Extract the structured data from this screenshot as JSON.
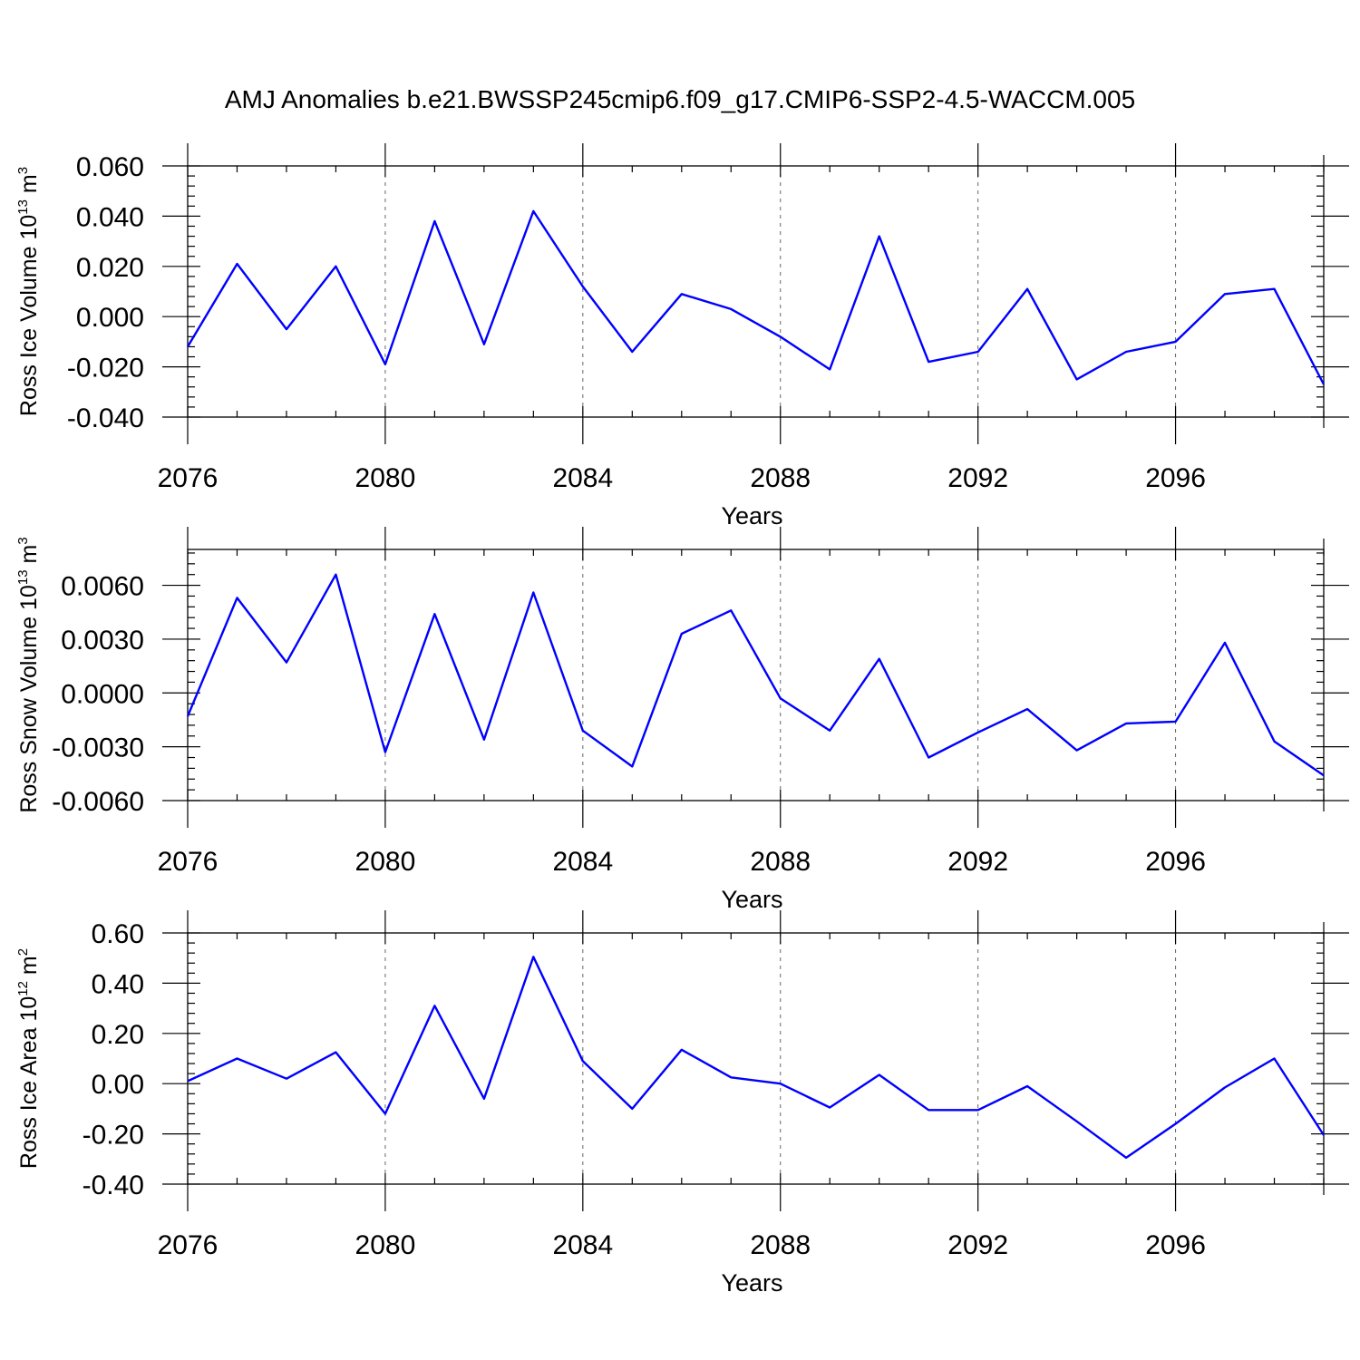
{
  "title": "AMJ Anomalies b.e21.BWSSP245cmip6.f09_g17.CMIP6-SSP2-4.5-WACCM.005",
  "colors": {
    "line": "#0000ff",
    "axis": "#000000",
    "grid": "#666666"
  },
  "chart_data": [
    {
      "type": "line",
      "xlabel": "Years",
      "ylabel_main": "Ross Ice Volume 10",
      "ylabel_exp": "13",
      "ylabel_unit": " m",
      "ylabel_unit_exp": "3",
      "x": [
        2076,
        2077,
        2078,
        2079,
        2080,
        2081,
        2082,
        2083,
        2084,
        2085,
        2086,
        2087,
        2088,
        2089,
        2090,
        2091,
        2092,
        2093,
        2094,
        2095,
        2096,
        2097,
        2098,
        2099
      ],
      "values": [
        -0.012,
        0.021,
        -0.005,
        0.02,
        -0.019,
        0.038,
        -0.011,
        0.042,
        0.012,
        -0.014,
        0.009,
        0.003,
        -0.008,
        -0.021,
        0.032,
        -0.018,
        -0.014,
        0.011,
        -0.025,
        -0.014,
        -0.01,
        0.009,
        0.011,
        -0.027
      ],
      "xlim": [
        2076,
        2099
      ],
      "ylim": [
        -0.04,
        0.06
      ],
      "xticks": [
        2076,
        2080,
        2084,
        2088,
        2092,
        2096
      ],
      "xtick_labels": [
        "2076",
        "2080",
        "2084",
        "2088",
        "2092",
        "2096"
      ],
      "yticks": [
        -0.04,
        -0.02,
        0.0,
        0.02,
        0.04,
        0.06
      ],
      "ytick_labels": [
        "-0.040",
        "-0.020",
        "0.000",
        "0.020",
        "0.040",
        "0.060"
      ],
      "grid": "dashed vertical at major x ticks"
    },
    {
      "type": "line",
      "xlabel": "Years",
      "ylabel_main": "Ross Snow Volume 10",
      "ylabel_exp": "13",
      "ylabel_unit": " m",
      "ylabel_unit_exp": "3",
      "x": [
        2076,
        2077,
        2078,
        2079,
        2080,
        2081,
        2082,
        2083,
        2084,
        2085,
        2086,
        2087,
        2088,
        2089,
        2090,
        2091,
        2092,
        2093,
        2094,
        2095,
        2096,
        2097,
        2098,
        2099
      ],
      "values": [
        -0.0013,
        0.0053,
        0.0017,
        0.0066,
        -0.0033,
        0.0044,
        -0.0026,
        0.0056,
        -0.0021,
        -0.0041,
        0.0033,
        0.0046,
        -0.0003,
        -0.0021,
        0.0019,
        -0.0036,
        -0.0022,
        -0.0009,
        -0.0032,
        -0.0017,
        -0.0016,
        0.0028,
        -0.0027,
        -0.0046
      ],
      "xlim": [
        2076,
        2099
      ],
      "ylim": [
        -0.006,
        0.008
      ],
      "xticks": [
        2076,
        2080,
        2084,
        2088,
        2092,
        2096
      ],
      "xtick_labels": [
        "2076",
        "2080",
        "2084",
        "2088",
        "2092",
        "2096"
      ],
      "yticks": [
        -0.006,
        -0.003,
        0.0,
        0.003,
        0.006
      ],
      "ytick_labels": [
        "-0.0060",
        "-0.0030",
        "0.0000",
        "0.0030",
        "0.0060"
      ],
      "grid": "dashed vertical at major x ticks"
    },
    {
      "type": "line",
      "xlabel": "Years",
      "ylabel_main": "Ross Ice Area 10",
      "ylabel_exp": "12",
      "ylabel_unit": " m",
      "ylabel_unit_exp": "2",
      "x": [
        2076,
        2077,
        2078,
        2079,
        2080,
        2081,
        2082,
        2083,
        2084,
        2085,
        2086,
        2087,
        2088,
        2089,
        2090,
        2091,
        2092,
        2093,
        2094,
        2095,
        2096,
        2097,
        2098,
        2099
      ],
      "values": [
        0.01,
        0.1,
        0.02,
        0.125,
        -0.12,
        0.31,
        -0.06,
        0.505,
        0.09,
        -0.1,
        0.135,
        0.025,
        0.0,
        -0.095,
        0.035,
        -0.105,
        -0.105,
        -0.01,
        -0.15,
        -0.295,
        -0.16,
        -0.015,
        0.1,
        -0.205
      ],
      "xlim": [
        2076,
        2099
      ],
      "ylim": [
        -0.4,
        0.6
      ],
      "xticks": [
        2076,
        2080,
        2084,
        2088,
        2092,
        2096
      ],
      "xtick_labels": [
        "2076",
        "2080",
        "2084",
        "2088",
        "2092",
        "2096"
      ],
      "yticks": [
        -0.4,
        -0.2,
        0.0,
        0.2,
        0.4,
        0.6
      ],
      "ytick_labels": [
        "-0.40",
        "-0.20",
        "0.00",
        "0.20",
        "0.40",
        "0.60"
      ],
      "grid": "dashed vertical at major x ticks"
    }
  ]
}
